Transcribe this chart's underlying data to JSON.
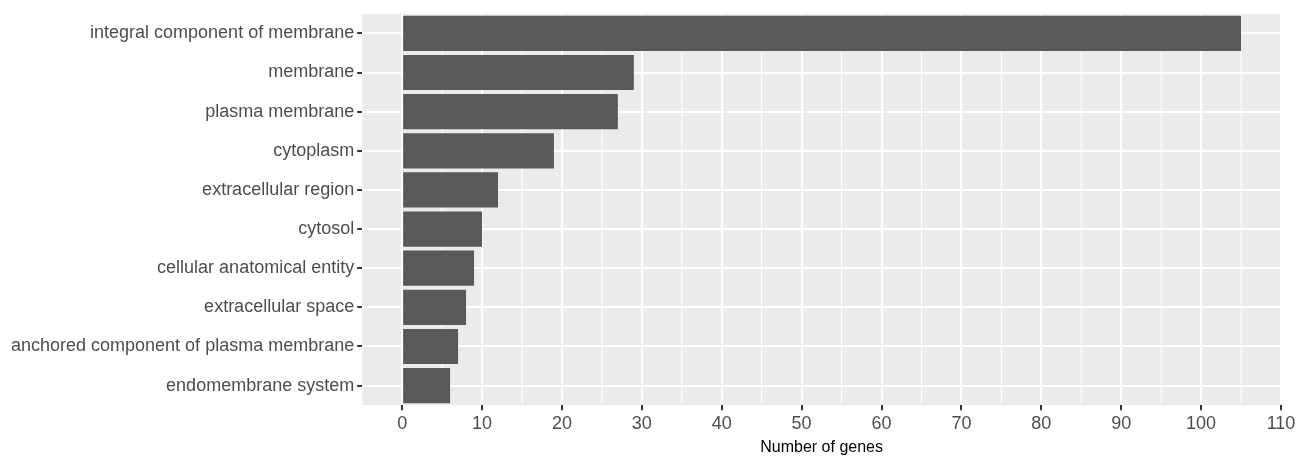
{
  "chart_data": {
    "type": "bar",
    "orientation": "horizontal",
    "xlabel": "Number of genes",
    "categories": [
      "integral component of membrane",
      "membrane",
      "plasma membrane",
      "cytoplasm",
      "extracellular region",
      "cytosol",
      "cellular anatomical entity",
      "extracellular space",
      "anchored component of plasma membrane",
      "endomembrane system"
    ],
    "values": [
      105,
      29,
      27,
      19,
      12,
      10,
      9,
      8,
      7,
      6
    ],
    "color": "#595959",
    "xlim": [
      -5,
      110
    ],
    "xticks": [
      0,
      10,
      20,
      30,
      40,
      50,
      60,
      70,
      80,
      90,
      100,
      110
    ],
    "grid": true,
    "legend": false
  }
}
